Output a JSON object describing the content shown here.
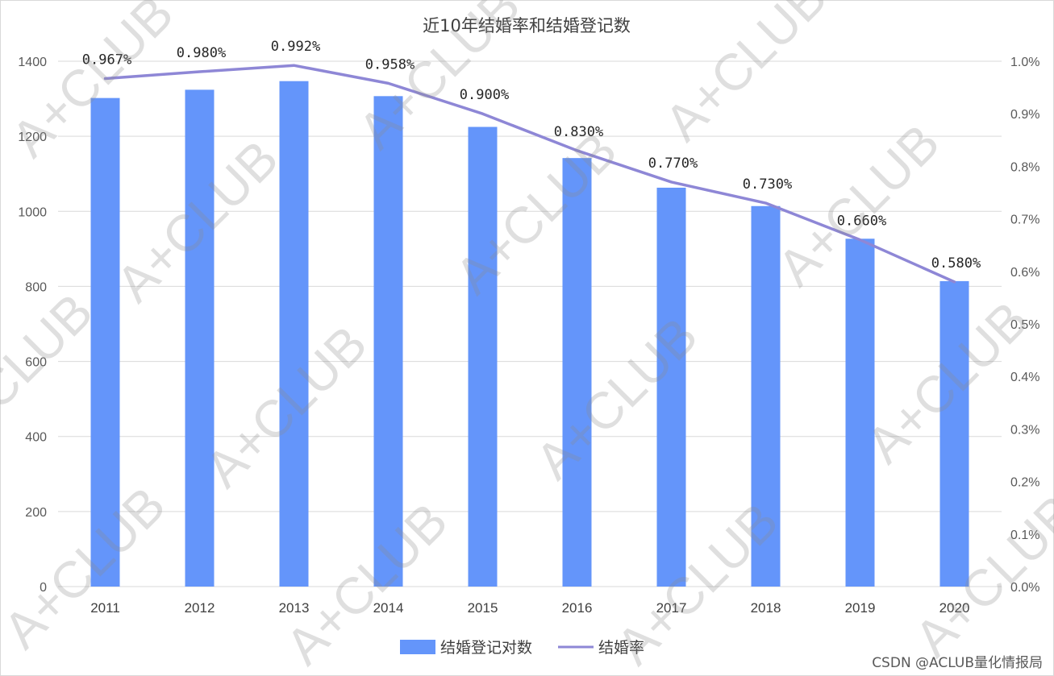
{
  "chart_data": {
    "type": "bar",
    "title": "近10年结婚率和结婚登记数",
    "categories": [
      "2011",
      "2012",
      "2013",
      "2014",
      "2015",
      "2016",
      "2017",
      "2018",
      "2019",
      "2020"
    ],
    "series": [
      {
        "name": "结婚登记对数",
        "type": "bar",
        "axis": "left",
        "values": [
          1302,
          1324,
          1347,
          1307,
          1225,
          1142,
          1063,
          1014,
          927,
          814
        ]
      },
      {
        "name": "结婚率",
        "type": "line",
        "axis": "right",
        "values": [
          0.967,
          0.98,
          0.992,
          0.958,
          0.9,
          0.83,
          0.77,
          0.73,
          0.66,
          0.58
        ],
        "labels": [
          "0.967%",
          "0.980%",
          "0.992%",
          "0.958%",
          "0.900%",
          "0.830%",
          "0.770%",
          "0.730%",
          "0.660%",
          "0.580%"
        ]
      }
    ],
    "y_left": {
      "ylim": [
        0,
        1400
      ],
      "ticks": [
        "0",
        "200",
        "400",
        "600",
        "800",
        "1000",
        "1200",
        "1400"
      ]
    },
    "y_right": {
      "ylim": [
        0,
        1.0
      ],
      "ticks": [
        "0.0%",
        "0.1%",
        "0.2%",
        "0.3%",
        "0.4%",
        "0.5%",
        "0.6%",
        "0.7%",
        "0.8%",
        "0.9%",
        "1.0%"
      ]
    },
    "grid": true,
    "legend": "bottom",
    "colors": {
      "bar": "#6495FA",
      "line": "#8E87D6",
      "grid": "#d9d9d9"
    }
  },
  "watermark": "A+CLUB",
  "credit": "CSDN @ACLUB量化情报局"
}
